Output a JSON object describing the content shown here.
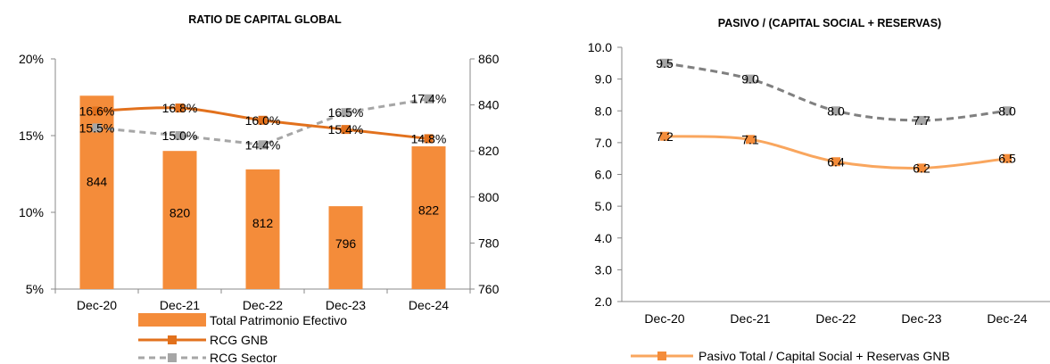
{
  "chart_data": [
    {
      "type": "bar",
      "title": "RATIO DE CAPITAL GLOBAL",
      "categories": [
        "Dec-20",
        "Dec-21",
        "Dec-22",
        "Dec-23",
        "Dec-24"
      ],
      "series": [
        {
          "name": "Total Patrimonio Efectivo",
          "type": "bar",
          "axis": "right",
          "values": [
            844,
            820,
            812,
            796,
            822
          ],
          "labels": [
            "844",
            "820",
            "812",
            "796",
            "822"
          ]
        },
        {
          "name": "RCG GNB",
          "type": "line",
          "axis": "left",
          "values": [
            16.6,
            16.8,
            16.0,
            15.4,
            14.8
          ],
          "labels": [
            "16.6%",
            "16.8%",
            "16.0%",
            "15.4%",
            "14.8%"
          ]
        },
        {
          "name": "RCG Sector",
          "type": "line",
          "style": "dashed",
          "axis": "left",
          "values": [
            15.5,
            15.0,
            14.4,
            16.5,
            17.4
          ],
          "labels": [
            "15.5%",
            "15.0%",
            "14.4%",
            "16.5%",
            "17.4%"
          ]
        }
      ],
      "y_left": {
        "range": [
          5,
          20
        ],
        "ticks": [
          "5%",
          "10%",
          "15%",
          "20%"
        ]
      },
      "y_right": {
        "range": [
          760,
          860
        ],
        "ticks": [
          "760",
          "780",
          "800",
          "820",
          "840",
          "860"
        ]
      },
      "legend": "bottom",
      "colors": {
        "bar": "#F48C3A",
        "rcg_gnb": "#E2711D",
        "rcg_sector": "#A6A6A6"
      }
    },
    {
      "type": "line",
      "title": "PASIVO / (CAPITAL SOCIAL + RESERVAS)",
      "categories": [
        "Dec-20",
        "Dec-21",
        "Dec-22",
        "Dec-23",
        "Dec-24"
      ],
      "series": [
        {
          "name": "Pasivo Total / Capital Social + Reservas GNB",
          "style": "solid",
          "values": [
            7.2,
            7.1,
            6.4,
            6.2,
            6.5
          ],
          "labels": [
            "7.2",
            "7.1",
            "6.4",
            "6.2",
            "6.5"
          ]
        },
        {
          "name": "",
          "style": "dashed",
          "values": [
            9.5,
            9.0,
            8.0,
            7.7,
            8.0
          ],
          "labels": [
            "9.5",
            "9.0",
            "8.0",
            "7.7",
            "8.0"
          ]
        }
      ],
      "ylim": [
        2,
        10
      ],
      "y_ticks": [
        "2.0",
        "3.0",
        "4.0",
        "5.0",
        "6.0",
        "7.0",
        "8.0",
        "9.0",
        "10.0"
      ],
      "legend": "bottom",
      "colors": {
        "gnb": "#F9A65E",
        "sector": "#808080"
      }
    }
  ]
}
